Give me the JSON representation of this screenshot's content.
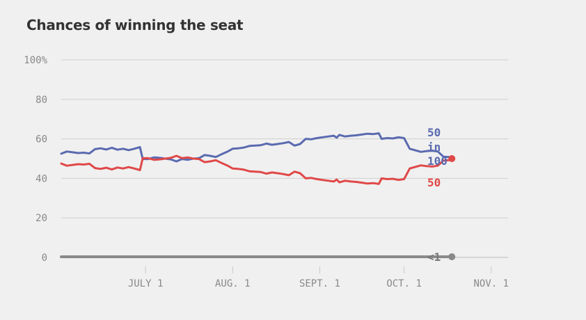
{
  "title": "Chances of winning the seat",
  "chart_data": {
    "type": "line",
    "title": "Chances of winning the seat",
    "xlabel": "",
    "ylabel": "",
    "ylim": [
      0,
      100
    ],
    "xlim": [
      "2018-06-01",
      "2018-11-07"
    ],
    "y_ticks": [
      "100%",
      "80",
      "60",
      "40",
      "20",
      "0"
    ],
    "x_ticks": [
      {
        "date": "2018-07-01",
        "label": "JULY 1"
      },
      {
        "date": "2018-08-01",
        "label": "AUG. 1"
      },
      {
        "date": "2018-09-01",
        "label": "SEPT. 1"
      },
      {
        "date": "2018-10-01",
        "label": "OCT. 1"
      },
      {
        "date": "2018-11-01",
        "label": "NOV. 1"
      }
    ],
    "grid": true,
    "series": [
      {
        "color": "#5a6ab0",
        "end_label": [
          "50",
          "in",
          "100"
        ],
        "points": [
          [
            "2018-06-01",
            52.5
          ],
          [
            "2018-06-03",
            53.6
          ],
          [
            "2018-06-05",
            53.2
          ],
          [
            "2018-06-07",
            52.8
          ],
          [
            "2018-06-09",
            53.0
          ],
          [
            "2018-06-11",
            52.6
          ],
          [
            "2018-06-13",
            54.8
          ],
          [
            "2018-06-15",
            55.2
          ],
          [
            "2018-06-17",
            54.6
          ],
          [
            "2018-06-19",
            55.5
          ],
          [
            "2018-06-21",
            54.5
          ],
          [
            "2018-06-23",
            55.0
          ],
          [
            "2018-06-25",
            54.3
          ],
          [
            "2018-06-27",
            55.0
          ],
          [
            "2018-06-29",
            55.8
          ],
          [
            "2018-06-30",
            49.8
          ],
          [
            "2018-07-02",
            49.8
          ],
          [
            "2018-07-04",
            50.6
          ],
          [
            "2018-07-06",
            50.4
          ],
          [
            "2018-07-08",
            50.0
          ],
          [
            "2018-07-10",
            49.6
          ],
          [
            "2018-07-12",
            48.6
          ],
          [
            "2018-07-14",
            49.8
          ],
          [
            "2018-07-16",
            49.4
          ],
          [
            "2018-07-18",
            50.0
          ],
          [
            "2018-07-20",
            50.2
          ],
          [
            "2018-07-22",
            51.8
          ],
          [
            "2018-07-24",
            51.4
          ],
          [
            "2018-07-26",
            50.8
          ],
          [
            "2018-07-28",
            52.2
          ],
          [
            "2018-07-30",
            53.4
          ],
          [
            "2018-08-01",
            55.0
          ],
          [
            "2018-08-03",
            55.2
          ],
          [
            "2018-08-05",
            55.6
          ],
          [
            "2018-08-07",
            56.4
          ],
          [
            "2018-08-09",
            56.6
          ],
          [
            "2018-08-11",
            56.8
          ],
          [
            "2018-08-13",
            57.6
          ],
          [
            "2018-08-15",
            57.0
          ],
          [
            "2018-08-17",
            57.4
          ],
          [
            "2018-08-19",
            57.8
          ],
          [
            "2018-08-21",
            58.4
          ],
          [
            "2018-08-23",
            56.6
          ],
          [
            "2018-08-25",
            57.4
          ],
          [
            "2018-08-27",
            60.0
          ],
          [
            "2018-08-29",
            59.8
          ],
          [
            "2018-08-31",
            60.4
          ],
          [
            "2018-09-02",
            60.8
          ],
          [
            "2018-09-04",
            61.2
          ],
          [
            "2018-09-06",
            61.6
          ],
          [
            "2018-09-07",
            60.6
          ],
          [
            "2018-09-08",
            62.0
          ],
          [
            "2018-09-10",
            61.2
          ],
          [
            "2018-09-12",
            61.6
          ],
          [
            "2018-09-14",
            61.8
          ],
          [
            "2018-09-16",
            62.2
          ],
          [
            "2018-09-18",
            62.6
          ],
          [
            "2018-09-20",
            62.4
          ],
          [
            "2018-09-22",
            62.8
          ],
          [
            "2018-09-23",
            60.0
          ],
          [
            "2018-09-25",
            60.4
          ],
          [
            "2018-09-27",
            60.2
          ],
          [
            "2018-09-29",
            60.8
          ],
          [
            "2018-10-01",
            60.4
          ],
          [
            "2018-10-03",
            55.0
          ],
          [
            "2018-10-05",
            54.2
          ],
          [
            "2018-10-07",
            53.4
          ],
          [
            "2018-10-09",
            53.8
          ],
          [
            "2018-10-11",
            54.0
          ],
          [
            "2018-10-13",
            53.6
          ],
          [
            "2018-10-15",
            51.0
          ],
          [
            "2018-10-17",
            50.8
          ],
          [
            "2018-10-18",
            50.0
          ]
        ]
      },
      {
        "color": "#e04848",
        "end_label": [
          "50"
        ],
        "points": [
          [
            "2018-06-01",
            47.5
          ],
          [
            "2018-06-03",
            46.4
          ],
          [
            "2018-06-05",
            46.8
          ],
          [
            "2018-06-07",
            47.2
          ],
          [
            "2018-06-09",
            47.0
          ],
          [
            "2018-06-11",
            47.4
          ],
          [
            "2018-06-13",
            45.2
          ],
          [
            "2018-06-15",
            44.8
          ],
          [
            "2018-06-17",
            45.4
          ],
          [
            "2018-06-19",
            44.5
          ],
          [
            "2018-06-21",
            45.5
          ],
          [
            "2018-06-23",
            45.0
          ],
          [
            "2018-06-25",
            45.7
          ],
          [
            "2018-06-27",
            45.0
          ],
          [
            "2018-06-29",
            44.2
          ],
          [
            "2018-06-30",
            50.2
          ],
          [
            "2018-07-02",
            50.2
          ],
          [
            "2018-07-04",
            49.4
          ],
          [
            "2018-07-06",
            49.6
          ],
          [
            "2018-07-08",
            50.0
          ],
          [
            "2018-07-10",
            50.4
          ],
          [
            "2018-07-12",
            51.4
          ],
          [
            "2018-07-14",
            50.2
          ],
          [
            "2018-07-16",
            50.6
          ],
          [
            "2018-07-18",
            50.0
          ],
          [
            "2018-07-20",
            49.8
          ],
          [
            "2018-07-22",
            48.2
          ],
          [
            "2018-07-24",
            48.6
          ],
          [
            "2018-07-26",
            49.2
          ],
          [
            "2018-07-28",
            47.8
          ],
          [
            "2018-07-30",
            46.6
          ],
          [
            "2018-08-01",
            45.0
          ],
          [
            "2018-08-03",
            44.8
          ],
          [
            "2018-08-05",
            44.4
          ],
          [
            "2018-08-07",
            43.6
          ],
          [
            "2018-08-09",
            43.4
          ],
          [
            "2018-08-11",
            43.2
          ],
          [
            "2018-08-13",
            42.4
          ],
          [
            "2018-08-15",
            43.0
          ],
          [
            "2018-08-17",
            42.6
          ],
          [
            "2018-08-19",
            42.2
          ],
          [
            "2018-08-21",
            41.6
          ],
          [
            "2018-08-23",
            43.4
          ],
          [
            "2018-08-25",
            42.6
          ],
          [
            "2018-08-27",
            40.0
          ],
          [
            "2018-08-29",
            40.2
          ],
          [
            "2018-08-31",
            39.6
          ],
          [
            "2018-09-02",
            39.2
          ],
          [
            "2018-09-04",
            38.8
          ],
          [
            "2018-09-06",
            38.4
          ],
          [
            "2018-09-07",
            39.4
          ],
          [
            "2018-09-08",
            38.0
          ],
          [
            "2018-09-10",
            38.8
          ],
          [
            "2018-09-12",
            38.4
          ],
          [
            "2018-09-14",
            38.2
          ],
          [
            "2018-09-16",
            37.8
          ],
          [
            "2018-09-18",
            37.4
          ],
          [
            "2018-09-20",
            37.6
          ],
          [
            "2018-09-22",
            37.2
          ],
          [
            "2018-09-23",
            40.0
          ],
          [
            "2018-09-25",
            39.6
          ],
          [
            "2018-09-27",
            39.8
          ],
          [
            "2018-09-29",
            39.2
          ],
          [
            "2018-10-01",
            39.6
          ],
          [
            "2018-10-03",
            45.0
          ],
          [
            "2018-10-05",
            45.8
          ],
          [
            "2018-10-07",
            46.6
          ],
          [
            "2018-10-09",
            46.2
          ],
          [
            "2018-10-11",
            46.0
          ],
          [
            "2018-10-13",
            46.4
          ],
          [
            "2018-10-15",
            49.0
          ],
          [
            "2018-10-17",
            49.2
          ],
          [
            "2018-10-18",
            50.0
          ]
        ]
      },
      {
        "color": "#888888",
        "end_label": [
          "<1"
        ],
        "points": [
          [
            "2018-06-01",
            0.3
          ],
          [
            "2018-10-18",
            0.3
          ]
        ]
      }
    ]
  }
}
